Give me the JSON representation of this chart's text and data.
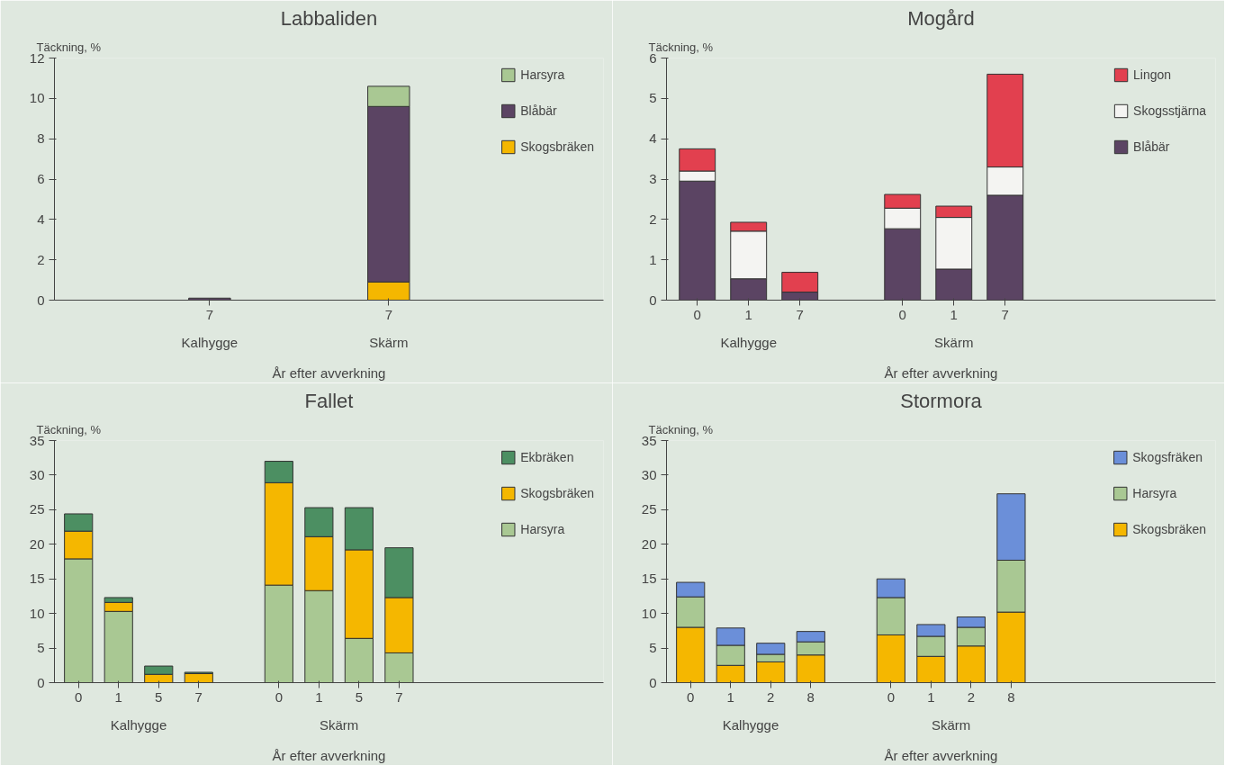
{
  "chart_data": [
    {
      "type": "bar",
      "stacked": true,
      "title": "Labbaliden",
      "ylabel": "Täckning, %",
      "xlabel": "År efter avverkning",
      "annotations": [
        "Kalhygge",
        "Skärm"
      ],
      "categories": [
        null,
        null,
        "7",
        null,
        null,
        "7"
      ],
      "ylim": [
        0,
        12
      ],
      "yticks": [
        0,
        2,
        4,
        6,
        8,
        10,
        12
      ],
      "legend": "top right",
      "series": [
        {
          "name": "Skogsbräken",
          "color": "#f5b700",
          "values": [
            null,
            null,
            null,
            null,
            null,
            0.9
          ]
        },
        {
          "name": "Blåbär",
          "color": "#5b4463",
          "values": [
            null,
            null,
            0.1,
            null,
            null,
            8.7
          ]
        },
        {
          "name": "Harsyra",
          "color": "#a9c893",
          "values": [
            null,
            null,
            null,
            null,
            null,
            1.0
          ]
        }
      ]
    },
    {
      "type": "bar",
      "stacked": true,
      "title": "Mogård",
      "ylabel": "Täckning, %",
      "xlabel": "År efter avverkning",
      "annotations": [
        "Kalhygge",
        "Skärm"
      ],
      "categories": [
        "0",
        "1",
        "7",
        null,
        "0",
        "1",
        "7"
      ],
      "ylim": [
        0,
        6
      ],
      "yticks": [
        0,
        1,
        2,
        3,
        4,
        5,
        6
      ],
      "legend": "top right",
      "series": [
        {
          "name": "Blåbär",
          "color": "#5b4463",
          "values": [
            2.95,
            0.53,
            0.2,
            null,
            1.77,
            0.77,
            2.6
          ]
        },
        {
          "name": "Skogsstjärna",
          "color": "#f4f4f2",
          "values": [
            0.25,
            1.18,
            null,
            null,
            0.51,
            1.28,
            0.7
          ]
        },
        {
          "name": "Lingon",
          "color": "#e2404f",
          "values": [
            0.55,
            0.22,
            0.49,
            null,
            0.34,
            0.28,
            2.3
          ]
        }
      ]
    },
    {
      "type": "bar",
      "stacked": true,
      "title": "Fallet",
      "ylabel": "Täckning, %",
      "xlabel": "År efter avverkning",
      "annotations": [
        "Kalhygge",
        "Skärm"
      ],
      "categories": [
        "0",
        "1",
        "5",
        "7",
        null,
        "0",
        "1",
        "5",
        "7"
      ],
      "ylim": [
        0,
        35
      ],
      "yticks": [
        0,
        5,
        10,
        15,
        20,
        25,
        30,
        35
      ],
      "legend": "top right",
      "series": [
        {
          "name": "Harsyra",
          "color": "#a9c893",
          "values": [
            17.9,
            10.3,
            null,
            null,
            null,
            14.1,
            13.3,
            6.4,
            4.3
          ]
        },
        {
          "name": "Skogsbräken",
          "color": "#f5b700",
          "values": [
            4.0,
            1.3,
            1.2,
            1.3,
            null,
            14.8,
            7.8,
            12.8,
            8.0
          ]
        },
        {
          "name": "Ekbräken",
          "color": "#4c8f62",
          "values": [
            2.5,
            0.7,
            1.2,
            0.2,
            null,
            3.1,
            4.2,
            6.1,
            7.2
          ]
        }
      ]
    },
    {
      "type": "bar",
      "stacked": true,
      "title": "Stormora",
      "ylabel": "Täckning, %",
      "xlabel": "År efter avverkning",
      "annotations": [
        "Kalhygge",
        "Skärm"
      ],
      "categories": [
        "0",
        "1",
        "2",
        "8",
        null,
        "0",
        "1",
        "2",
        "8"
      ],
      "ylim": [
        0,
        35
      ],
      "yticks": [
        0,
        5,
        10,
        15,
        20,
        25,
        30,
        35
      ],
      "legend": "top right",
      "series": [
        {
          "name": "Skogsbräken",
          "color": "#f5b700",
          "values": [
            8.0,
            2.5,
            3.0,
            4.0,
            null,
            6.9,
            3.8,
            5.3,
            10.2
          ]
        },
        {
          "name": "Harsyra",
          "color": "#a9c893",
          "values": [
            4.4,
            2.9,
            1.1,
            1.9,
            null,
            5.4,
            2.9,
            2.7,
            7.5
          ]
        },
        {
          "name": "Skogsfräken",
          "color": "#6b8fd9",
          "values": [
            2.1,
            2.5,
            1.6,
            1.5,
            null,
            2.7,
            1.7,
            1.5,
            9.6
          ]
        }
      ]
    }
  ]
}
